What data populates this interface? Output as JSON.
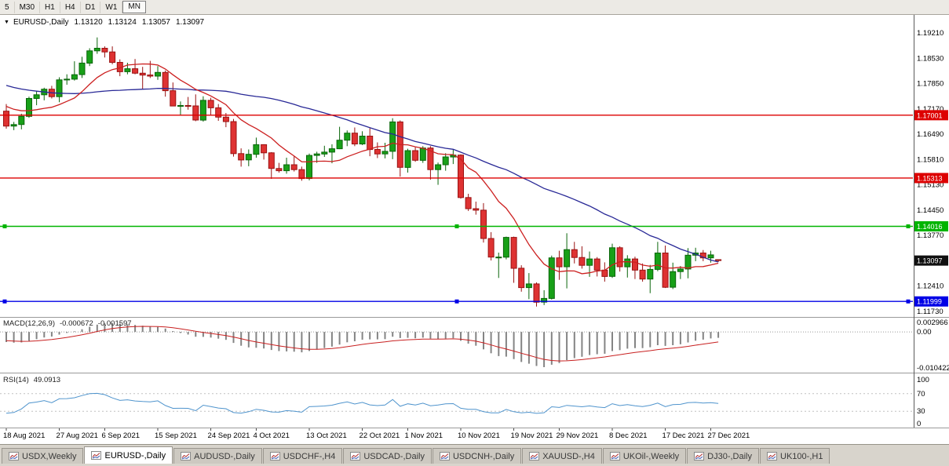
{
  "toolbar": {
    "buttons": [
      "5",
      "M30",
      "H1",
      "H4",
      "D1",
      "W1",
      "MN"
    ],
    "pressed": "MN"
  },
  "main_chart": {
    "title_symbol": "EURUSD-,Daily",
    "open": "1.13120",
    "high": "1.13124",
    "low": "1.13057",
    "close": "1.13097"
  },
  "tabs": {
    "items": [
      "USDX,Weekly",
      "EURUSD-,Daily",
      "AUDUSD-,Daily",
      "USDCHF-,H4",
      "USDCAD-,Daily",
      "USDCNH-,Daily",
      "XAUUSD-,H4",
      "UKOil-,Weekly",
      "DJ30-,Daily",
      "UK100-,H1"
    ],
    "active": "EURUSD-,Daily"
  },
  "chart_data": {
    "type": "candlestick",
    "title": "EURUSD-,Daily",
    "symbol": "EURUSD-",
    "timeframe": "Daily",
    "ohlc_display": {
      "open": "1.13120",
      "high": "1.13124",
      "low": "1.13057",
      "close": "1.13097"
    },
    "y_ticks": [
      1.1921,
      1.1853,
      1.1785,
      1.1717,
      1.1649,
      1.1581,
      1.1513,
      1.1445,
      1.1377,
      1.1309,
      1.1241,
      1.1173
    ],
    "x_ticks": [
      {
        "index": 0,
        "label": "18 Aug 2021"
      },
      {
        "index": 7,
        "label": "27 Aug 2021"
      },
      {
        "index": 13,
        "label": "6 Sep 2021"
      },
      {
        "index": 20,
        "label": "15 Sep 2021"
      },
      {
        "index": 27,
        "label": "24 Sep 2021"
      },
      {
        "index": 33,
        "label": "4 Oct 2021"
      },
      {
        "index": 40,
        "label": "13 Oct 2021"
      },
      {
        "index": 47,
        "label": "22 Oct 2021"
      },
      {
        "index": 53,
        "label": "1 Nov 2021"
      },
      {
        "index": 60,
        "label": "10 Nov 2021"
      },
      {
        "index": 67,
        "label": "19 Nov 2021"
      },
      {
        "index": 73,
        "label": "29 Nov 2021"
      },
      {
        "index": 80,
        "label": "8 Dec 2021"
      },
      {
        "index": 87,
        "label": "17 Dec 2021"
      },
      {
        "index": 93,
        "label": "27 Dec 2021"
      }
    ],
    "candles": [
      [
        1.1711,
        1.173,
        1.1664,
        1.1671
      ],
      [
        1.1671,
        1.1682,
        1.166,
        1.1675
      ],
      [
        1.1675,
        1.1704,
        1.1662,
        1.1697
      ],
      [
        1.1697,
        1.175,
        1.1693,
        1.1745
      ],
      [
        1.1745,
        1.1765,
        1.1727,
        1.1755
      ],
      [
        1.1755,
        1.1774,
        1.174,
        1.177
      ],
      [
        1.177,
        1.1779,
        1.1745,
        1.175
      ],
      [
        1.175,
        1.1802,
        1.1735,
        1.1795
      ],
      [
        1.1795,
        1.181,
        1.1782,
        1.1797
      ],
      [
        1.1797,
        1.1845,
        1.1793,
        1.1809
      ],
      [
        1.1809,
        1.1857,
        1.18,
        1.184
      ],
      [
        1.184,
        1.188,
        1.1832,
        1.1873
      ],
      [
        1.1873,
        1.1909,
        1.1865,
        1.188
      ],
      [
        1.188,
        1.1885,
        1.1855,
        1.187
      ],
      [
        1.187,
        1.1885,
        1.1837,
        1.1842
      ],
      [
        1.1842,
        1.185,
        1.1805,
        1.1817
      ],
      [
        1.1817,
        1.1841,
        1.181,
        1.1825
      ],
      [
        1.1825,
        1.1851,
        1.181,
        1.1813
      ],
      [
        1.1813,
        1.183,
        1.177,
        1.1808
      ],
      [
        1.1808,
        1.1846,
        1.18,
        1.1805
      ],
      [
        1.1805,
        1.1832,
        1.1795,
        1.1815
      ],
      [
        1.1815,
        1.182,
        1.175,
        1.1766
      ],
      [
        1.1766,
        1.1788,
        1.1724,
        1.1725
      ],
      [
        1.1725,
        1.1737,
        1.17,
        1.1726
      ],
      [
        1.1726,
        1.1749,
        1.1715,
        1.1725
      ],
      [
        1.1725,
        1.1756,
        1.1684,
        1.1687
      ],
      [
        1.1687,
        1.1751,
        1.1683,
        1.174
      ],
      [
        1.174,
        1.1747,
        1.1701,
        1.172
      ],
      [
        1.172,
        1.173,
        1.1685,
        1.1695
      ],
      [
        1.1695,
        1.1706,
        1.1668,
        1.1683
      ],
      [
        1.1683,
        1.169,
        1.1589,
        1.1597
      ],
      [
        1.1597,
        1.1611,
        1.1562,
        1.158
      ],
      [
        1.158,
        1.1608,
        1.1563,
        1.1595
      ],
      [
        1.1595,
        1.164,
        1.1586,
        1.1621
      ],
      [
        1.1621,
        1.1622,
        1.1581,
        1.1599
      ],
      [
        1.1599,
        1.1601,
        1.1529,
        1.1557
      ],
      [
        1.1557,
        1.1572,
        1.1546,
        1.1551
      ],
      [
        1.1551,
        1.1586,
        1.1543,
        1.1567
      ],
      [
        1.1567,
        1.1591,
        1.1549,
        1.1554
      ],
      [
        1.1554,
        1.1562,
        1.1524,
        1.153
      ],
      [
        1.153,
        1.1597,
        1.1525,
        1.1592
      ],
      [
        1.1592,
        1.1602,
        1.1572,
        1.1596
      ],
      [
        1.1596,
        1.1618,
        1.1588,
        1.1601
      ],
      [
        1.1601,
        1.1622,
        1.1571,
        1.161
      ],
      [
        1.161,
        1.1669,
        1.1609,
        1.1633
      ],
      [
        1.1633,
        1.1659,
        1.1617,
        1.1652
      ],
      [
        1.1652,
        1.1667,
        1.1617,
        1.1623
      ],
      [
        1.1623,
        1.1657,
        1.162,
        1.1644
      ],
      [
        1.1644,
        1.1665,
        1.159,
        1.1608
      ],
      [
        1.1608,
        1.1627,
        1.1585,
        1.1596
      ],
      [
        1.1596,
        1.1626,
        1.1584,
        1.1603
      ],
      [
        1.1603,
        1.1692,
        1.1582,
        1.1682
      ],
      [
        1.1682,
        1.1686,
        1.1535,
        1.156
      ],
      [
        1.156,
        1.161,
        1.1546,
        1.1605
      ],
      [
        1.1605,
        1.1614,
        1.1575,
        1.1579
      ],
      [
        1.1579,
        1.1617,
        1.1572,
        1.1612
      ],
      [
        1.1612,
        1.1617,
        1.1527,
        1.1554
      ],
      [
        1.1554,
        1.1573,
        1.1513,
        1.1567
      ],
      [
        1.1567,
        1.1598,
        1.1551,
        1.1588
      ],
      [
        1.1588,
        1.1608,
        1.1569,
        1.1593
      ],
      [
        1.1593,
        1.1595,
        1.1476,
        1.1479
      ],
      [
        1.1479,
        1.1489,
        1.1443,
        1.1449
      ],
      [
        1.1449,
        1.1468,
        1.1433,
        1.1445
      ],
      [
        1.1445,
        1.1464,
        1.1358,
        1.1369
      ],
      [
        1.1369,
        1.1386,
        1.131,
        1.1319
      ],
      [
        1.1319,
        1.1331,
        1.1263,
        1.1319
      ],
      [
        1.1319,
        1.1374,
        1.1313,
        1.1372
      ],
      [
        1.1372,
        1.1374,
        1.125,
        1.1289
      ],
      [
        1.1289,
        1.1297,
        1.1226,
        1.1237
      ],
      [
        1.1237,
        1.1276,
        1.1206,
        1.1247
      ],
      [
        1.1247,
        1.1251,
        1.1186,
        1.1198
      ],
      [
        1.1198,
        1.123,
        1.119,
        1.1208
      ],
      [
        1.1208,
        1.1323,
        1.1205,
        1.1317
      ],
      [
        1.1317,
        1.1336,
        1.1258,
        1.1293
      ],
      [
        1.1293,
        1.1383,
        1.1235,
        1.1339
      ],
      [
        1.1339,
        1.136,
        1.1302,
        1.1318
      ],
      [
        1.1318,
        1.1348,
        1.1288,
        1.1297
      ],
      [
        1.1297,
        1.1334,
        1.1266,
        1.1314
      ],
      [
        1.1314,
        1.1319,
        1.1267,
        1.1284
      ],
      [
        1.1284,
        1.1305,
        1.1253,
        1.1267
      ],
      [
        1.1267,
        1.1355,
        1.1263,
        1.1344
      ],
      [
        1.1344,
        1.1348,
        1.128,
        1.1293
      ],
      [
        1.1293,
        1.1324,
        1.1264,
        1.1314
      ],
      [
        1.1314,
        1.132,
        1.126,
        1.1284
      ],
      [
        1.1284,
        1.1302,
        1.1253,
        1.126
      ],
      [
        1.126,
        1.1298,
        1.1222,
        1.1286
      ],
      [
        1.1286,
        1.136,
        1.1281,
        1.133
      ],
      [
        1.133,
        1.135,
        1.1236,
        1.1238
      ],
      [
        1.1238,
        1.1304,
        1.1233,
        1.128
      ],
      [
        1.128,
        1.1295,
        1.126,
        1.1287
      ],
      [
        1.1287,
        1.1343,
        1.1262,
        1.1324
      ],
      [
        1.1324,
        1.1344,
        1.1308,
        1.133
      ],
      [
        1.133,
        1.1338,
        1.1308,
        1.1317
      ],
      [
        1.1317,
        1.1336,
        1.1304,
        1.1325
      ],
      [
        1.1312,
        1.13124,
        1.13057,
        1.13097
      ]
    ],
    "hlines": [
      {
        "price": 1.17001,
        "label": "1.17001",
        "color": "#dd0000",
        "handles": false
      },
      {
        "price": 1.15313,
        "label": "1.15313",
        "color": "#dd0000",
        "handles": false
      },
      {
        "price": 1.14016,
        "label": "1.14016",
        "color": "#00b400",
        "handles": true
      },
      {
        "price": 1.11999,
        "label": "1.11999",
        "color": "#0000e6",
        "handles": true
      }
    ],
    "current_price": {
      "value": 1.13097,
      "label": "1.13097"
    },
    "ma_fast_period": 10,
    "ma_slow_period": 34,
    "ma_seed": 1.186,
    "macd": {
      "label": "MACD(12,26,9)",
      "value_main": "-0.000672",
      "value_signal": "-0.001597",
      "fast": 12,
      "slow": 26,
      "signal": 9,
      "axis": [
        "0.002966",
        "0.00",
        "-0.010422"
      ]
    },
    "rsi": {
      "label": "RSI(14)",
      "value": "49.0913",
      "period": 14,
      "axis": [
        "100",
        "70",
        "30",
        "0"
      ],
      "levels": [
        70,
        30
      ]
    },
    "colors": {
      "up": "#18a018",
      "up_border": "#0a650a",
      "down": "#de3232",
      "down_border": "#991212",
      "ma_fast": "#cc2020",
      "ma_slow": "#282896",
      "macd_hist": "#848484",
      "macd_signal": "#c82020",
      "rsi": "#4f94cd",
      "current_price_bg": "#101010"
    }
  }
}
